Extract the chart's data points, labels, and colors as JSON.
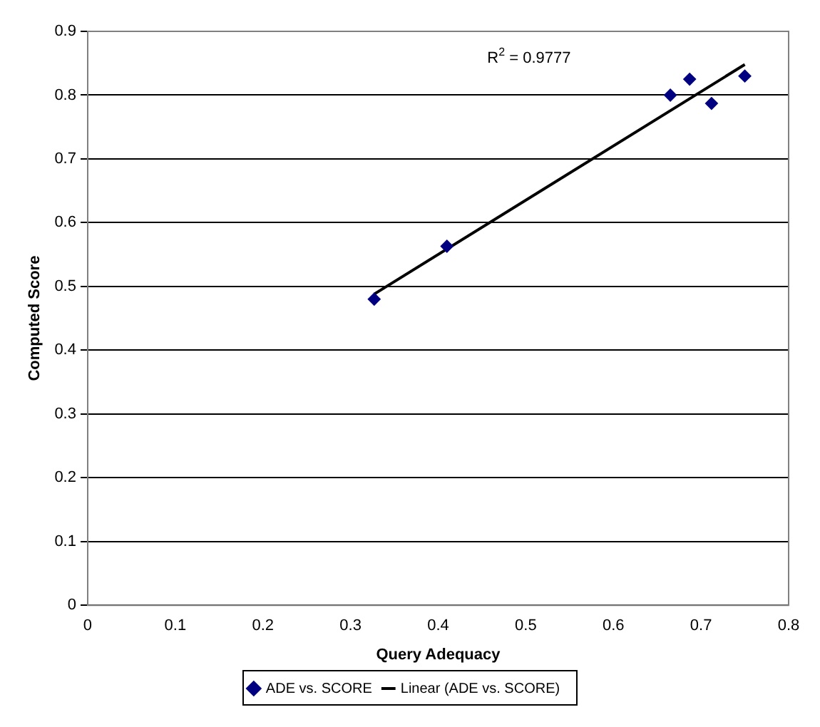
{
  "chart_data": {
    "type": "scatter",
    "xlabel": "Query Adequacy",
    "ylabel": "Computed Score",
    "annotations": [
      "R$^{2}$ = 0.9777"
    ],
    "series": [
      {
        "name": "ADE vs. SCORE",
        "type": "scatter",
        "color": "#000080",
        "marker": "diamond",
        "x": [
          0.327,
          0.41,
          0.665,
          0.687,
          0.712,
          0.75
        ],
        "values": [
          0.48,
          0.563,
          0.8,
          0.825,
          0.787,
          0.83
        ]
      },
      {
        "name": "Linear (ADE vs. SCORE)",
        "type": "line",
        "color": "#000000",
        "marker": "none",
        "x": [
          0.327,
          0.75
        ],
        "values": [
          0.488,
          0.848
        ]
      }
    ],
    "xlim": [
      0,
      0.8
    ],
    "xticks": [
      0,
      0.1,
      0.2,
      0.3,
      0.4,
      0.5,
      0.6,
      0.7,
      0.8
    ],
    "ylim": [
      0,
      0.9
    ],
    "yticks": [
      0,
      0.1,
      0.2,
      0.3,
      0.4,
      0.5,
      0.6,
      0.7,
      0.8,
      0.9
    ],
    "grid": "y",
    "legend": "bottom"
  }
}
